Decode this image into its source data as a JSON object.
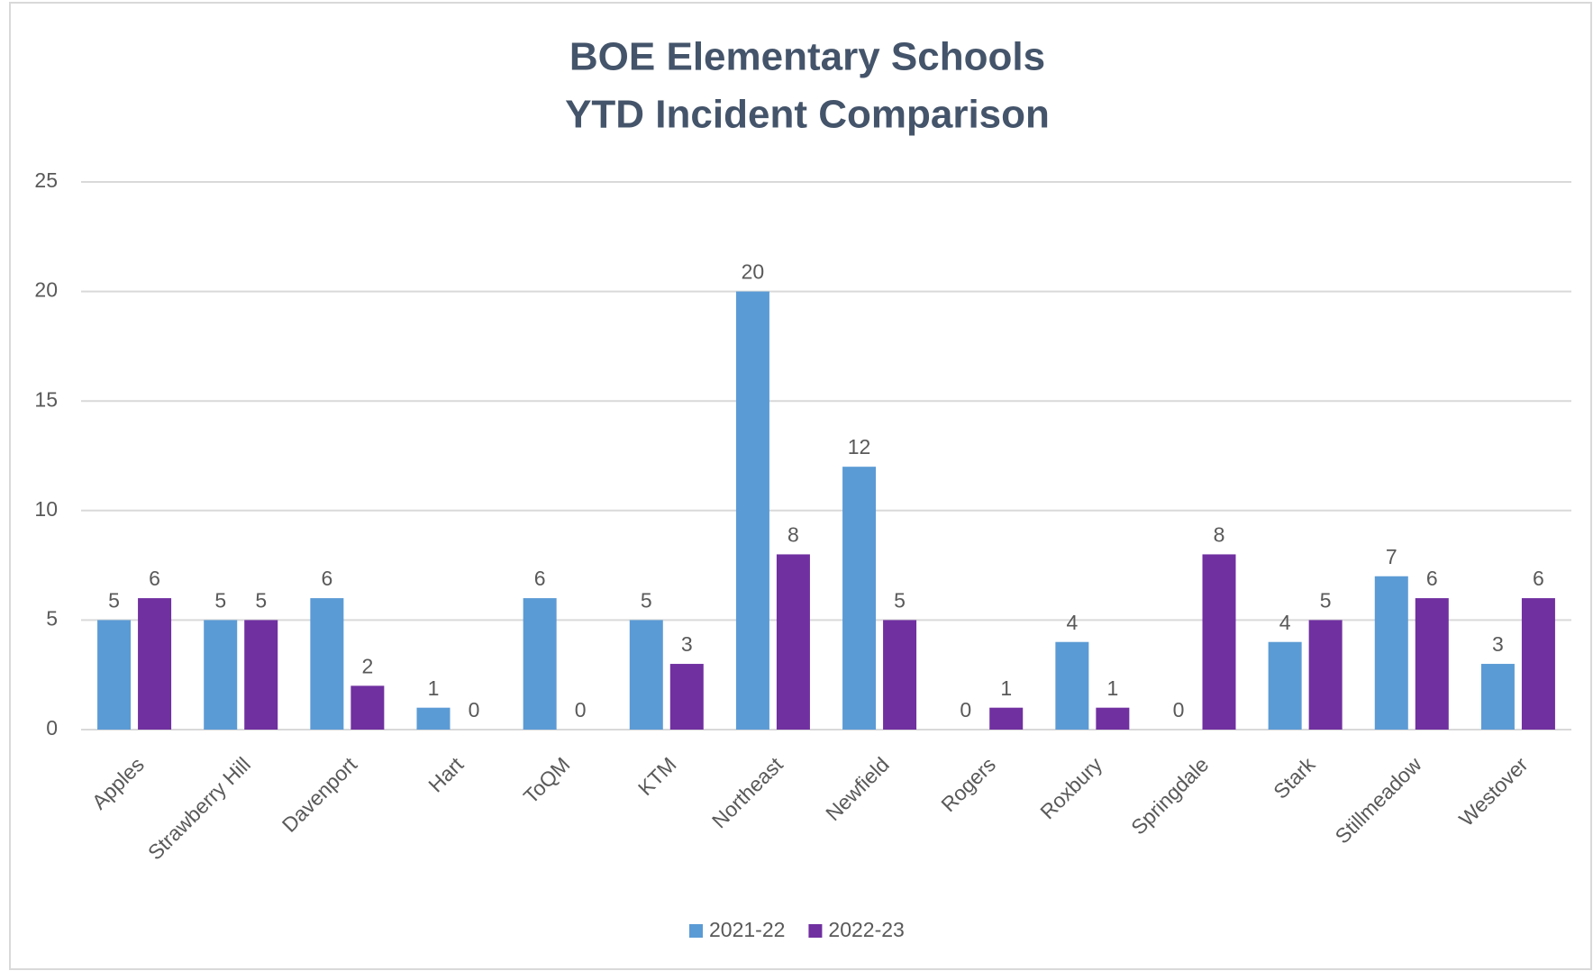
{
  "chart_data": {
    "type": "bar",
    "title": [
      "BOE Elementary Schools",
      "YTD Incident Comparison"
    ],
    "categories": [
      "Apples",
      "Strawberry Hill",
      "Davenport",
      "Hart",
      "ToQM",
      "KTM",
      "Northeast",
      "Newfield",
      "Rogers",
      "Roxbury",
      "Springdale",
      "Stark",
      "Stillmeadow",
      "Westover"
    ],
    "series": [
      {
        "name": "2021-22",
        "color": "#5b9bd5",
        "values": [
          5,
          5,
          6,
          1,
          6,
          5,
          20,
          12,
          0,
          4,
          0,
          4,
          7,
          3
        ]
      },
      {
        "name": "2022-23",
        "color": "#7030a0",
        "values": [
          6,
          5,
          2,
          0,
          0,
          3,
          8,
          5,
          1,
          1,
          8,
          5,
          6,
          6
        ]
      }
    ],
    "ylim": [
      0,
      25
    ],
    "yticks": [
      0,
      5,
      10,
      15,
      20,
      25
    ],
    "grid": true,
    "legend": "bottom"
  }
}
